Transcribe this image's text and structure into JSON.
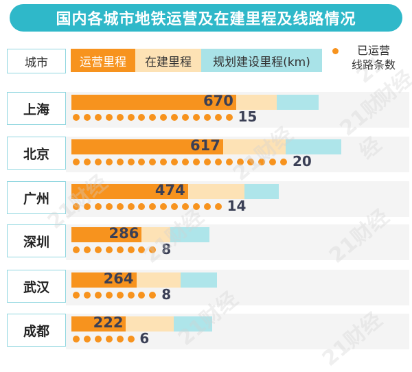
{
  "title": "国内各城市地铁运营及在建里程及线路情况",
  "legend": {
    "city": "城市",
    "operating": "运营里程",
    "construction": "在建里程",
    "planned": "规划建设里程(km)",
    "lines_label_1": "已运营",
    "lines_label_2": "线路条数"
  },
  "watermark": "21财经",
  "colors": {
    "title_bg": "#2fb8c9",
    "operating": "#f7931e",
    "construction": "#fde2b5",
    "planned": "#aee5ea"
  },
  "chart_data": {
    "type": "bar",
    "categories": [
      "上海",
      "北京",
      "广州",
      "深圳",
      "武汉",
      "成都"
    ],
    "series": [
      {
        "name": "运营里程",
        "values": [
          670,
          617,
          474,
          286,
          264,
          222
        ]
      },
      {
        "name": "在建里程",
        "values": [
          165,
          255,
          230,
          116,
          180,
          194
        ]
      },
      {
        "name": "规划建设里程(km)",
        "values": [
          170,
          227,
          139,
          160,
          148,
          158
        ]
      },
      {
        "name": "已运营线路条数",
        "values": [
          15,
          20,
          14,
          8,
          8,
          6
        ]
      }
    ]
  }
}
